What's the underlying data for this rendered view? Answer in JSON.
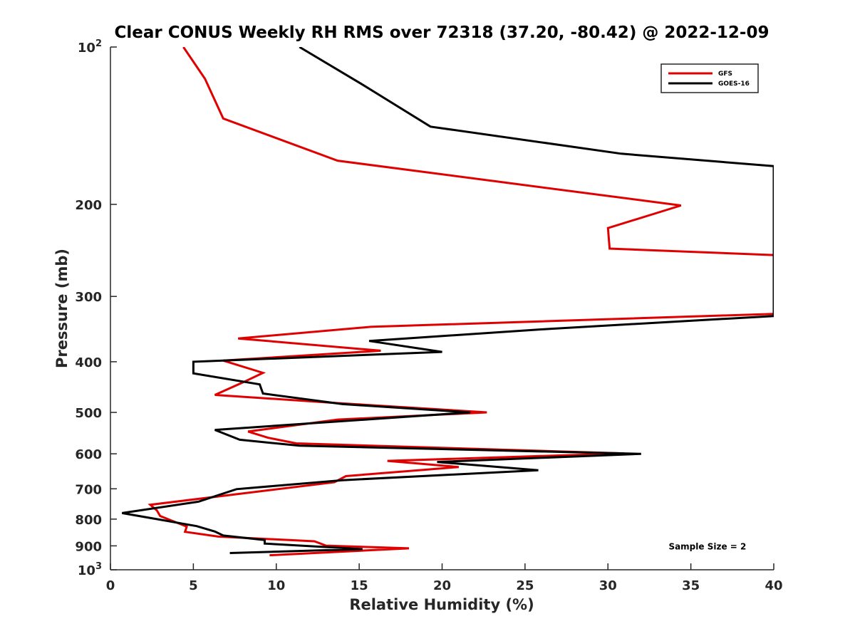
{
  "chart_data": {
    "type": "line",
    "title": "Clear CONUS Weekly RH RMS over 72318 (37.20, -80.42) @ 2022-12-09",
    "xlabel": "Relative Humidity (%)",
    "ylabel": "Pressure (mb)",
    "xlim": [
      0,
      40
    ],
    "ylim": [
      100,
      1000
    ],
    "y_scale": "log",
    "y_reversed": true,
    "grid": false,
    "legend_position": "top-right",
    "x_ticks": [
      {
        "value": 0,
        "label": "0"
      },
      {
        "value": 5,
        "label": "5"
      },
      {
        "value": 10,
        "label": "10"
      },
      {
        "value": 15,
        "label": "15"
      },
      {
        "value": 20,
        "label": "20"
      },
      {
        "value": 25,
        "label": "25"
      },
      {
        "value": 30,
        "label": "30"
      },
      {
        "value": 35,
        "label": "35"
      },
      {
        "value": 40,
        "label": "40"
      }
    ],
    "y_ticks": [
      {
        "value": 100,
        "label": "10",
        "sup": "2"
      },
      {
        "value": 200,
        "label": "200",
        "sup": ""
      },
      {
        "value": 300,
        "label": "300",
        "sup": ""
      },
      {
        "value": 400,
        "label": "400",
        "sup": ""
      },
      {
        "value": 500,
        "label": "500",
        "sup": ""
      },
      {
        "value": 600,
        "label": "600",
        "sup": ""
      },
      {
        "value": 700,
        "label": "700",
        "sup": ""
      },
      {
        "value": 800,
        "label": "800",
        "sup": ""
      },
      {
        "value": 900,
        "label": "900",
        "sup": ""
      },
      {
        "value": 1000,
        "label": "10",
        "sup": "3"
      }
    ],
    "series": [
      {
        "name": "GFS",
        "color": "#e00000",
        "points": [
          [
            4.4,
            100
          ],
          [
            5.7,
            115
          ],
          [
            6.8,
            137
          ],
          [
            13.7,
            165
          ],
          [
            34.4,
            201
          ],
          [
            30.0,
            222
          ],
          [
            30.1,
            243
          ],
          [
            40.0,
            250
          ],
          [
            40.0,
            324
          ],
          [
            15.7,
            343
          ],
          [
            7.7,
            361
          ],
          [
            16.3,
            381
          ],
          [
            6.8,
            398
          ],
          [
            9.2,
            420
          ],
          [
            8.0,
            438
          ],
          [
            6.3,
            463
          ],
          [
            13.7,
            480
          ],
          [
            22.7,
            500
          ],
          [
            13.7,
            516
          ],
          [
            8.3,
            544
          ],
          [
            9.5,
            559
          ],
          [
            11.2,
            573
          ],
          [
            31.0,
            599
          ],
          [
            16.7,
            619
          ],
          [
            21.0,
            636
          ],
          [
            14.2,
            662
          ],
          [
            13.5,
            680
          ],
          [
            2.4,
            751
          ],
          [
            2.8,
            770
          ],
          [
            3.0,
            789
          ],
          [
            4.6,
            827
          ],
          [
            4.5,
            846
          ],
          [
            6.5,
            864
          ],
          [
            12.3,
            882
          ],
          [
            13.0,
            899
          ],
          [
            18.0,
            910
          ],
          [
            9.6,
            938
          ]
        ]
      },
      {
        "name": "GOES-16",
        "color": "#000000",
        "points": [
          [
            11.4,
            100
          ],
          [
            15.2,
            118
          ],
          [
            19.3,
            142
          ],
          [
            30.8,
            160
          ],
          [
            40.0,
            169
          ],
          [
            40.0,
            327
          ],
          [
            26.5,
            346
          ],
          [
            15.6,
            365
          ],
          [
            20.0,
            383
          ],
          [
            5.0,
            400
          ],
          [
            5.0,
            421
          ],
          [
            9.0,
            442
          ],
          [
            9.2,
            460
          ],
          [
            14.0,
            482
          ],
          [
            21.7,
            500
          ],
          [
            6.3,
            540
          ],
          [
            7.8,
            564
          ],
          [
            11.4,
            579
          ],
          [
            32.0,
            600
          ],
          [
            19.7,
            622
          ],
          [
            25.8,
            645
          ],
          [
            14.0,
            674
          ],
          [
            7.6,
            701
          ],
          [
            5.3,
            741
          ],
          [
            0.7,
            779
          ],
          [
            2.8,
            800
          ],
          [
            5.2,
            825
          ],
          [
            6.3,
            845
          ],
          [
            6.8,
            860
          ],
          [
            9.3,
            877
          ],
          [
            9.3,
            891
          ],
          [
            15.2,
            913
          ],
          [
            7.2,
            929
          ]
        ]
      }
    ],
    "annotations": [
      {
        "text": "Sample Size = 2",
        "x": 36,
        "y": 900
      }
    ]
  }
}
